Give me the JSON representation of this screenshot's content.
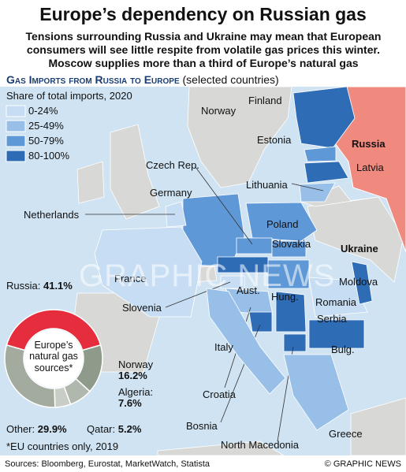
{
  "header": {
    "title": "Europe’s dependency on Russian gas",
    "subtitle": "Tensions surrounding Russia and Ukraine may mean that European consumers will see little respite from volatile gas prices this winter. Moscow supplies more than a third of Europe’s natural gas"
  },
  "map": {
    "heading": "Gas Imports from Russia to Europe",
    "heading_note": "(selected countries)",
    "legend_title": "Share of total imports, 2020",
    "legend": [
      {
        "label": "0-24%",
        "color": "#c6ddf3"
      },
      {
        "label": "25-49%",
        "color": "#98bfe8"
      },
      {
        "label": "50-79%",
        "color": "#5f98d6"
      },
      {
        "label": "80-100%",
        "color": "#2f6cb6"
      }
    ],
    "countries": [
      {
        "label": "Finland",
        "share_class": 3
      },
      {
        "label": "Estonia",
        "share_class": 2
      },
      {
        "label": "Latvia",
        "share_class": 3
      },
      {
        "label": "Lithuania",
        "share_class": 1
      },
      {
        "label": "Poland",
        "share_class": 2
      },
      {
        "label": "Germany",
        "share_class": 2
      },
      {
        "label": "Netherlands",
        "share_class": 0
      },
      {
        "label": "Czech Rep.",
        "share_class": 2
      },
      {
        "label": "Slovakia",
        "share_class": 2
      },
      {
        "label": "Aust.",
        "share_class": 3
      },
      {
        "label": "Hung.",
        "share_class": 2
      },
      {
        "label": "France",
        "share_class": 0
      },
      {
        "label": "Slovenia",
        "share_class": 0
      },
      {
        "label": "Croatia",
        "share_class": 1
      },
      {
        "label": "Bosnia",
        "share_class": 3
      },
      {
        "label": "Serbia",
        "share_class": 3
      },
      {
        "label": "Romania",
        "share_class": 0
      },
      {
        "label": "Moldova",
        "share_class": 3
      },
      {
        "label": "Italy",
        "share_class": 1
      },
      {
        "label": "Bulg.",
        "share_class": 3
      },
      {
        "label": "North Macedonia",
        "share_class": 3
      },
      {
        "label": "Greece",
        "share_class": 1
      }
    ],
    "other_labels": [
      "Norway",
      "Russia",
      "Ukraine"
    ],
    "watermark": "GRAPHIC NEWS"
  },
  "chart_data": {
    "type": "donut",
    "center_label": "Europe’s natural gas sources*",
    "categories": [
      "Russia:",
      "Norway",
      "Algeria:",
      "Qatar:",
      "Other:"
    ],
    "values": [
      41.1,
      16.2,
      7.6,
      5.2,
      29.9
    ],
    "value_labels": [
      "41.1%",
      "16.2%",
      "7.6%",
      "5.2%",
      "29.9%"
    ],
    "colors": [
      "#e52d3d",
      "#8e9a8a",
      "#b0b8ad",
      "#c8cdc5",
      "#a3ab9f"
    ],
    "footnote": "*EU countries only, 2019"
  },
  "footer": {
    "sources": "Sources: Bloomberg, Eurostat, MarketWatch, Statista",
    "credit": "© GRAPHIC NEWS"
  }
}
